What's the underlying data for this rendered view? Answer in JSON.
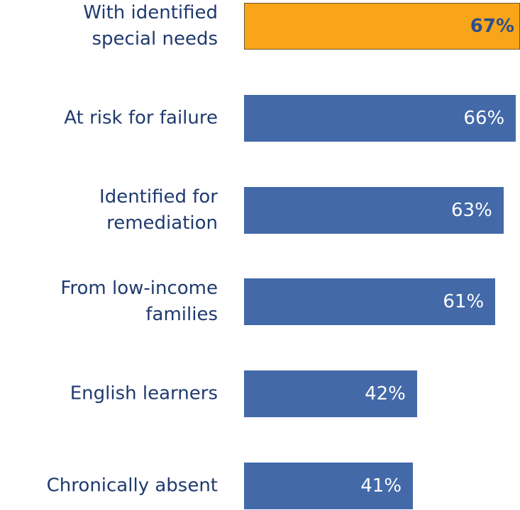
{
  "chart_data": {
    "type": "barh",
    "categories": [
      "With identified\nspecial needs",
      "At risk for failure",
      "Identified for\nremediation",
      "From low-income\nfamilies",
      "English learners",
      "Chronically absent"
    ],
    "values": [
      67,
      66,
      63,
      61,
      42,
      41
    ],
    "value_labels": [
      "67%",
      "66%",
      "63%",
      "61%",
      "42%",
      "41%"
    ],
    "colors": [
      "#f9a51a",
      "#4369a9",
      "#4369a9",
      "#4369a9",
      "#4369a9",
      "#4369a9"
    ],
    "highlight": 0
  }
}
